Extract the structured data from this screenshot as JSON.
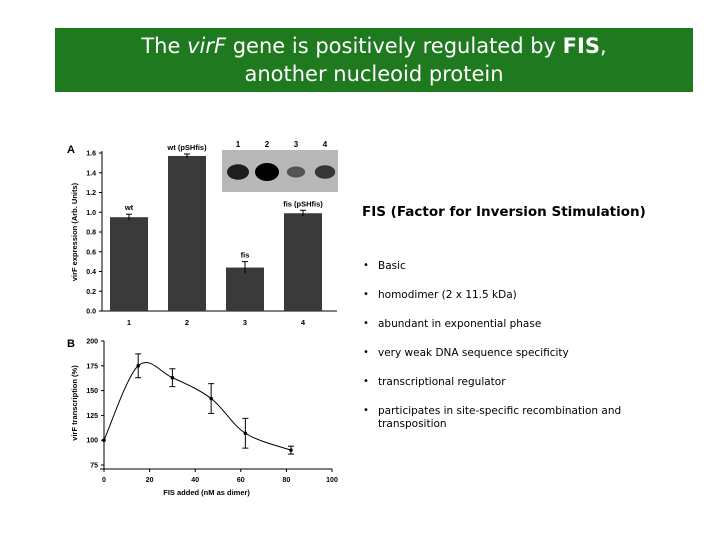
{
  "slide": {
    "title_part1": "The ",
    "title_gene": "virF",
    "title_part2": " gene is positively regulated by ",
    "title_fis": "FIS",
    "title_part3": ",",
    "title_line2": "another nucleoid protein",
    "info_heading": "FIS (Factor for Inversion Stimulation)",
    "bullets": [
      "Basic",
      "homodimer (2 x 11.5 kDa)",
      "abundant in exponential phase",
      "very weak DNA sequence specificity",
      "transcriptional regulator",
      "participates in site-specific recombination and transposition"
    ],
    "bullet_symbol": "•"
  },
  "chart_data": [
    {
      "panel": "A",
      "type": "bar",
      "categories": [
        "1",
        "2",
        "3",
        "4"
      ],
      "values": [
        0.95,
        1.57,
        0.44,
        0.99
      ],
      "errors": [
        0.03,
        0.02,
        0.06,
        0.03
      ],
      "bar_labels": [
        "wt",
        "wt (pSHfis)",
        "fis",
        "fis (pSHfis)"
      ],
      "ylabel": "virF expression (Arb. Units)",
      "ylim": [
        0,
        1.6
      ],
      "yticks": [
        "0.0",
        "0.2",
        "0.4",
        "0.6",
        "0.8",
        "1.0",
        "1.2",
        "1.4",
        "1.6"
      ],
      "inset_gel_lanes": [
        "1",
        "2",
        "3",
        "4"
      ],
      "inset_gel_intensity": [
        0.75,
        1.0,
        0.3,
        0.55
      ],
      "bar_color": "#3a3a3a"
    },
    {
      "panel": "B",
      "type": "line",
      "x": [
        0,
        15,
        30,
        47,
        62,
        82
      ],
      "y": [
        100,
        175,
        163,
        142,
        107,
        90
      ],
      "errors": [
        0,
        12,
        9,
        15,
        15,
        4
      ],
      "xlabel": "FIS added (nM as dimer)",
      "ylabel": "virF transcription (%)",
      "xlim": [
        0,
        100
      ],
      "ylim": [
        75,
        200
      ],
      "xticks": [
        "0",
        "20",
        "40",
        "60",
        "80",
        "100"
      ],
      "yticks": [
        "75",
        "100",
        "125",
        "150",
        "175",
        "200"
      ],
      "smooth": true
    }
  ]
}
